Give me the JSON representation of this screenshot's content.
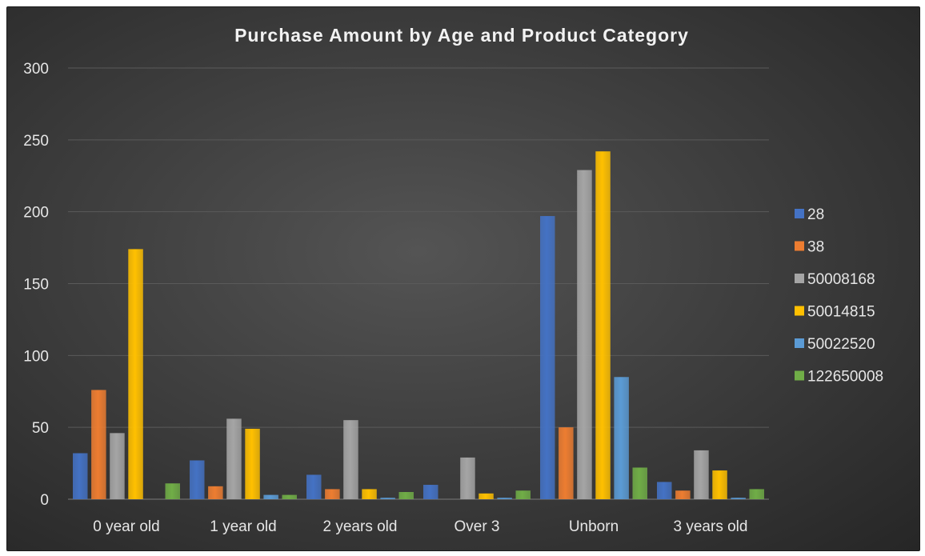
{
  "chart_data": {
    "type": "bar",
    "title": "Purchase Amount by Age and Product Category",
    "xlabel": "",
    "ylabel": "",
    "categories": [
      "0 year old",
      "1 year old",
      "2 years old",
      "Over 3",
      "Unborn",
      "3 years old"
    ],
    "ylim": [
      0,
      300
    ],
    "yticks": [
      0,
      50,
      100,
      150,
      200,
      250,
      300
    ],
    "grid": true,
    "legend_position": "right",
    "series": [
      {
        "name": "28",
        "color": "#4472c4",
        "values": [
          32,
          27,
          17,
          10,
          197,
          12
        ]
      },
      {
        "name": "38",
        "color": "#ed7d31",
        "values": [
          76,
          9,
          7,
          0,
          50,
          6
        ]
      },
      {
        "name": "50008168",
        "color": "#a5a5a5",
        "values": [
          46,
          56,
          55,
          29,
          229,
          34
        ]
      },
      {
        "name": "50014815",
        "color": "#ffc000",
        "values": [
          174,
          49,
          7,
          4,
          242,
          20
        ]
      },
      {
        "name": "50022520",
        "color": "#5b9bd5",
        "values": [
          0,
          3,
          1,
          1,
          85,
          1
        ]
      },
      {
        "name": "122650008",
        "color": "#70ad47",
        "values": [
          11,
          3,
          5,
          6,
          22,
          7
        ]
      }
    ]
  }
}
